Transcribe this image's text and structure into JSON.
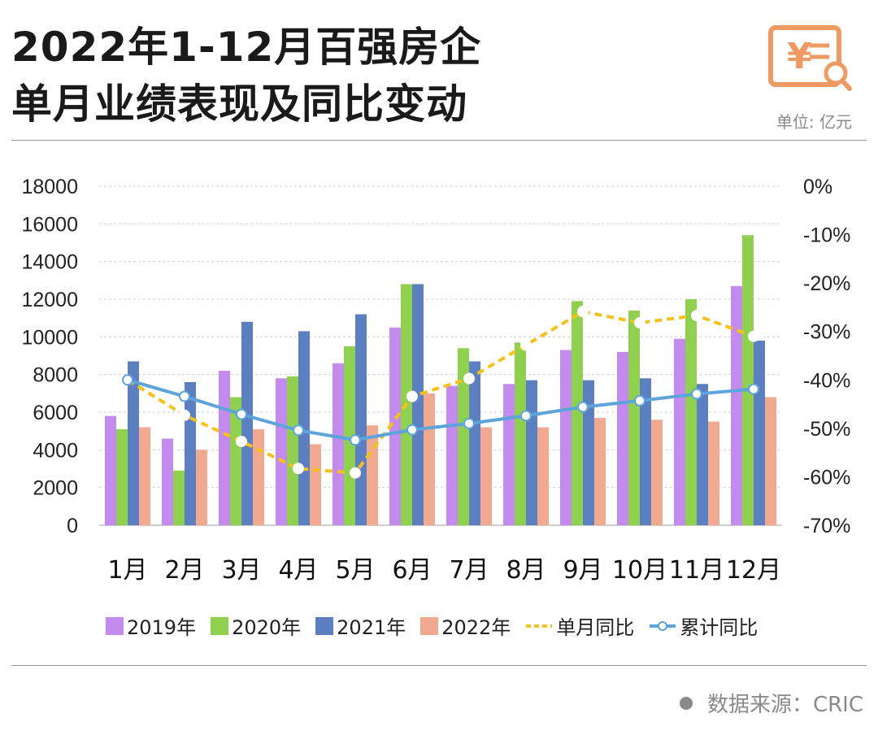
{
  "header": {
    "title_line1": "2022年1-12月百强房企",
    "title_line2": "单月业绩表现及同比变动",
    "unit": "单位: 亿元",
    "logo_icon": "yuan-document-search-icon"
  },
  "source": "数据来源：CRIC",
  "colors": {
    "2019": "#c38bee",
    "2020": "#8fd14f",
    "2021": "#5b7fc1",
    "2022": "#f1a98f",
    "monthly_yoy": "#f5c11c",
    "cumulative_yoy": "#5da4dc",
    "logo": "#ee9a62"
  },
  "chart_data": {
    "type": "bar",
    "categories": [
      "1月",
      "2月",
      "3月",
      "4月",
      "5月",
      "6月",
      "7月",
      "8月",
      "9月",
      "10月",
      "11月",
      "12月"
    ],
    "series": [
      {
        "name": "2019年",
        "values": [
          5800,
          4600,
          8200,
          7800,
          8600,
          10500,
          7400,
          7500,
          9300,
          9200,
          9900,
          12700
        ]
      },
      {
        "name": "2020年",
        "values": [
          5100,
          2900,
          6800,
          7900,
          9500,
          12800,
          9400,
          9700,
          11900,
          11400,
          12000,
          15400
        ]
      },
      {
        "name": "2021年",
        "values": [
          8700,
          7600,
          10800,
          10300,
          11200,
          12800,
          8700,
          7700,
          7700,
          7800,
          7500,
          9800
        ]
      },
      {
        "name": "2022年",
        "values": [
          5200,
          4000,
          5100,
          4300,
          5300,
          7000,
          5200,
          5200,
          5700,
          5600,
          5500,
          6800
        ]
      }
    ],
    "line_series": [
      {
        "name": "单月同比",
        "axis": "right",
        "values": [
          -40.0,
          -47.3,
          -52.7,
          -58.3,
          -59.2,
          -43.4,
          -39.7,
          -32.8,
          -25.9,
          -28.2,
          -26.7,
          -31.0
        ]
      },
      {
        "name": "累计同比",
        "axis": "right",
        "values": [
          -40.0,
          -43.4,
          -47.1,
          -50.4,
          -52.4,
          -50.3,
          -49.0,
          -47.4,
          -45.6,
          -44.3,
          -42.9,
          -41.9
        ]
      }
    ],
    "y_left": {
      "min": 0,
      "max": 18000,
      "ticks": [
        "0",
        "2000",
        "4000",
        "6000",
        "8000",
        "10000",
        "12000",
        "14000",
        "16000",
        "18000"
      ]
    },
    "y_right": {
      "min": -70,
      "max": 0,
      "ticks": [
        "-70%",
        "-60%",
        "-50%",
        "-40%",
        "-30%",
        "-20%",
        "-10%",
        "0%"
      ]
    },
    "grid": true,
    "legend_position": "bottom"
  }
}
